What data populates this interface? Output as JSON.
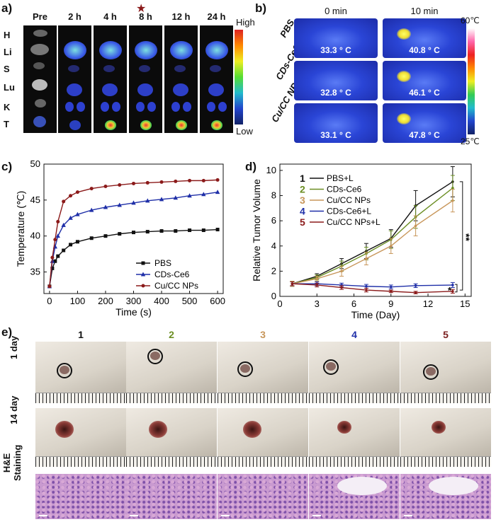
{
  "panels": {
    "a": "a)",
    "b": "b)",
    "c": "c)",
    "d": "d)",
    "e": "e)"
  },
  "panel_a": {
    "columns": [
      "Pre",
      "2 h",
      "4 h",
      "8 h",
      "12 h",
      "24 h"
    ],
    "rows": [
      "H",
      "Li",
      "S",
      "Lu",
      "K",
      "T"
    ],
    "colorbar_high": "High",
    "colorbar_low": "Low",
    "star_marker": "★"
  },
  "panel_b": {
    "columns": [
      "0 min",
      "10 min"
    ],
    "rows": [
      "PBS",
      "CDs-Ce6",
      "Cu/CC NPs"
    ],
    "temps": [
      [
        "33.3 ° C",
        "40.8 ° C"
      ],
      [
        "32.8 ° C",
        "46.1 ° C"
      ],
      [
        "33.1 ° C",
        "47.8 ° C"
      ]
    ],
    "scale_max": "60℃",
    "scale_min": "25℃"
  },
  "panel_e": {
    "columns": [
      "1",
      "2",
      "3",
      "4",
      "5"
    ],
    "column_colors": [
      "#111111",
      "#6b8e23",
      "#c8965a",
      "#1f2fa8",
      "#7a1f1f"
    ],
    "rows": [
      "1 day",
      "14 day",
      "H&E\nStaining"
    ]
  },
  "chart_data": [
    {
      "type": "line",
      "xlabel": "Time (s)",
      "ylabel": "Temperature (℃)",
      "xlim": [
        -20,
        620
      ],
      "ylim": [
        32,
        50
      ],
      "xticks": [
        0,
        100,
        200,
        300,
        400,
        500,
        600
      ],
      "yticks": [
        35,
        40,
        45,
        50
      ],
      "legend_position": "bottom-right",
      "series": [
        {
          "name": "PBS",
          "color": "#111111",
          "marker": "square",
          "x": [
            0,
            10,
            20,
            30,
            50,
            75,
            100,
            150,
            200,
            250,
            300,
            350,
            400,
            450,
            500,
            550,
            600
          ],
          "y": [
            33.0,
            35.5,
            36.5,
            37.2,
            38.0,
            38.8,
            39.2,
            39.7,
            40.0,
            40.3,
            40.5,
            40.6,
            40.7,
            40.7,
            40.8,
            40.8,
            40.9
          ]
        },
        {
          "name": "CDs-Ce6",
          "color": "#1f2fa8",
          "marker": "triangle",
          "x": [
            0,
            10,
            20,
            30,
            50,
            75,
            100,
            150,
            200,
            250,
            300,
            350,
            400,
            450,
            500,
            550,
            600
          ],
          "y": [
            33.0,
            36.5,
            38.5,
            40.0,
            41.5,
            42.5,
            43.0,
            43.6,
            44.0,
            44.3,
            44.6,
            44.9,
            45.1,
            45.3,
            45.6,
            45.8,
            46.1
          ]
        },
        {
          "name": "Cu/CC NPs",
          "color": "#8b1a1a",
          "marker": "circle",
          "x": [
            0,
            10,
            20,
            30,
            50,
            75,
            100,
            150,
            200,
            250,
            300,
            350,
            400,
            450,
            500,
            550,
            600
          ],
          "y": [
            33.0,
            37.0,
            39.5,
            42.0,
            44.8,
            45.6,
            46.1,
            46.6,
            46.9,
            47.1,
            47.3,
            47.4,
            47.5,
            47.6,
            47.7,
            47.7,
            47.8
          ]
        }
      ]
    },
    {
      "type": "line",
      "xlabel": "Time (Day)",
      "ylabel": "Relative Tumor Volume",
      "xlim": [
        0,
        15.5
      ],
      "ylim": [
        0,
        10.5
      ],
      "xticks": [
        0,
        3,
        6,
        9,
        12,
        15
      ],
      "yticks": [
        0,
        2,
        4,
        6,
        8,
        10
      ],
      "legend_position": "top-left",
      "annotations": [
        "**",
        "*"
      ],
      "series": [
        {
          "name": "PBS+L",
          "number": "1",
          "color": "#111111",
          "x": [
            1,
            3,
            5,
            7,
            9,
            11,
            14
          ],
          "y": [
            1.0,
            1.6,
            2.6,
            3.6,
            4.6,
            7.2,
            9.1
          ],
          "err": [
            0.2,
            0.2,
            0.4,
            0.6,
            0.7,
            1.2,
            1.2
          ]
        },
        {
          "name": "CDs-Ce6",
          "number": "2",
          "color": "#6b8e23",
          "x": [
            1,
            3,
            5,
            7,
            9,
            11,
            14
          ],
          "y": [
            1.0,
            1.5,
            2.4,
            3.4,
            4.5,
            6.3,
            8.6
          ],
          "err": [
            0.2,
            0.2,
            0.4,
            0.5,
            0.7,
            0.9,
            1.0
          ]
        },
        {
          "name": "Cu/CC NPs",
          "number": "3",
          "color": "#c8965a",
          "x": [
            1,
            3,
            5,
            7,
            9,
            11,
            14
          ],
          "y": [
            1.0,
            1.4,
            2.0,
            3.0,
            4.0,
            5.6,
            7.6
          ],
          "err": [
            0.2,
            0.2,
            0.4,
            0.5,
            0.6,
            0.8,
            0.9
          ]
        },
        {
          "name": "CDs-Ce6+L",
          "number": "4",
          "color": "#1f2fa8",
          "x": [
            1,
            3,
            5,
            7,
            9,
            11,
            14
          ],
          "y": [
            1.0,
            1.0,
            0.9,
            0.8,
            0.75,
            0.85,
            0.9
          ],
          "err": [
            0.15,
            0.15,
            0.15,
            0.15,
            0.15,
            0.15,
            0.2
          ]
        },
        {
          "name": "Cu/CC NPs+L",
          "number": "5",
          "color": "#8b1a1a",
          "x": [
            1,
            3,
            5,
            7,
            9,
            11,
            14
          ],
          "y": [
            1.0,
            0.9,
            0.7,
            0.5,
            0.4,
            0.3,
            0.4
          ],
          "err": [
            0.15,
            0.15,
            0.15,
            0.15,
            0.1,
            0.1,
            0.15
          ]
        }
      ]
    }
  ]
}
